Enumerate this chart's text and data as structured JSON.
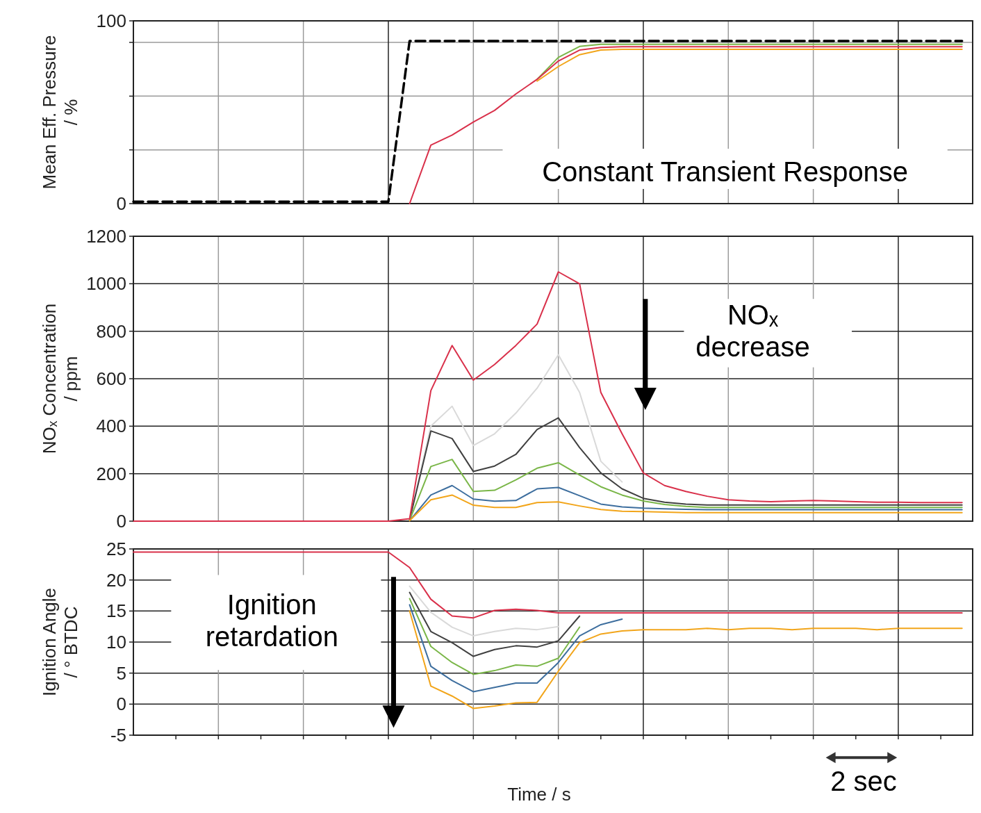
{
  "chart_data": [
    {
      "type": "line",
      "ylabel": "Mean Eff. Pressure / %",
      "ylim": [
        0,
        100
      ],
      "yticks": [
        0,
        {
          "value": 29.4,
          "label": null
        },
        {
          "value": 58.8,
          "label": null
        },
        {
          "value": 88.2,
          "label": null
        },
        100
      ],
      "grid": true,
      "annotations": [
        "Constant Transient Response"
      ],
      "categories": [
        null,
        null,
        null,
        null,
        null,
        null,
        null,
        null,
        null,
        null,
        null,
        null,
        null,
        null,
        null,
        null,
        null,
        null,
        null,
        null,
        null,
        null,
        null,
        null,
        null,
        null,
        null,
        null,
        null,
        null,
        null,
        null,
        null,
        null,
        null,
        null,
        null,
        null,
        null,
        null
      ],
      "series": [
        {
          "color": "#7ab648",
          "values": [
            null,
            null,
            null,
            null,
            null,
            null,
            null,
            null,
            null,
            null,
            null,
            null,
            null,
            null,
            null,
            null,
            null,
            null,
            null,
            68,
            80,
            86,
            87.2,
            87.2,
            87.2,
            87.2,
            87.2,
            87.2,
            87.2,
            87.2,
            87.2,
            87.2,
            87.2,
            87.2,
            87.2,
            87.2,
            87.2,
            87.2,
            87.2,
            87.2
          ]
        },
        {
          "color": "#f2a51a",
          "values": [
            null,
            null,
            null,
            null,
            null,
            null,
            null,
            null,
            null,
            null,
            null,
            null,
            null,
            null,
            null,
            null,
            null,
            null,
            null,
            67,
            75,
            81.5,
            84,
            84.4,
            84.4,
            84.4,
            84.4,
            84.4,
            84.4,
            84.4,
            84.4,
            84.4,
            84.4,
            84.4,
            84.4,
            84.4,
            84.4,
            84.4,
            84.4,
            84.4
          ]
        },
        {
          "color": "#d9304a",
          "values": [
            null,
            null,
            null,
            null,
            null,
            null,
            null,
            null,
            null,
            null,
            null,
            null,
            null,
            0,
            32,
            37.5,
            44.6,
            51,
            60,
            68,
            78,
            84,
            85.5,
            85.8,
            85.8,
            85.8,
            85.8,
            85.8,
            85.8,
            85.8,
            85.8,
            85.8,
            85.8,
            85.8,
            85.8,
            85.8,
            85.8,
            85.8,
            85.8,
            85.8
          ]
        },
        {
          "color": "#000000",
          "line_style": "dashed",
          "values": [
            1,
            1,
            1,
            1,
            1,
            1,
            1,
            1,
            1,
            1,
            1,
            1,
            1,
            89,
            89,
            89,
            89,
            89,
            89,
            89,
            89,
            89,
            89,
            89,
            89,
            89,
            89,
            89,
            89,
            89,
            89,
            89,
            89,
            89,
            89,
            89,
            89,
            89,
            89,
            89
          ]
        }
      ]
    },
    {
      "type": "line",
      "ylabel": "NOₓ Concentration / ppm",
      "ylim": [
        0,
        1200
      ],
      "yticks": [
        0,
        200,
        400,
        600,
        800,
        1000,
        1200
      ],
      "grid": true,
      "annotations": [
        "NOₓ decrease"
      ],
      "categories": [
        null,
        null,
        null,
        null,
        null,
        null,
        null,
        null,
        null,
        null,
        null,
        null,
        null,
        null,
        null,
        null,
        null,
        null,
        null,
        null,
        null,
        null,
        null,
        null,
        null,
        null,
        null,
        null,
        null,
        null,
        null,
        null,
        null,
        null,
        null,
        null,
        null,
        null,
        null,
        null
      ],
      "series": [
        {
          "color": "#d9d9d9",
          "values": [
            null,
            null,
            null,
            null,
            null,
            null,
            null,
            null,
            null,
            null,
            null,
            null,
            null,
            5,
            400,
            484,
            319,
            368,
            455,
            560,
            701,
            542,
            252,
            165,
            null,
            null,
            null,
            null,
            null,
            null,
            null,
            null,
            null,
            null,
            null,
            null,
            null,
            null,
            null,
            null
          ]
        },
        {
          "color": "#404040",
          "values": [
            null,
            null,
            null,
            null,
            null,
            null,
            null,
            null,
            null,
            null,
            null,
            null,
            null,
            5,
            380,
            348,
            209,
            232,
            281,
            386,
            435,
            310,
            203,
            136,
            96,
            80,
            72,
            68,
            68,
            68,
            68,
            68,
            68,
            68,
            68,
            68,
            68,
            68,
            68,
            68
          ]
        },
        {
          "color": "#7ab648",
          "values": [
            null,
            null,
            null,
            null,
            null,
            null,
            null,
            null,
            null,
            null,
            null,
            null,
            null,
            3,
            230,
            260,
            125,
            130,
            174,
            223,
            246,
            194,
            145,
            110,
            85,
            70,
            62,
            58,
            58,
            58,
            58,
            58,
            58,
            58,
            58,
            58,
            58,
            58,
            58,
            58
          ]
        },
        {
          "color": "#3d6e9e",
          "values": [
            null,
            null,
            null,
            null,
            null,
            null,
            null,
            null,
            null,
            null,
            null,
            null,
            null,
            2,
            110,
            150,
            93,
            84,
            87,
            136,
            142,
            107,
            72,
            60,
            55,
            52,
            50,
            48,
            48,
            48,
            48,
            48,
            48,
            48,
            48,
            48,
            48,
            48,
            48,
            48
          ]
        },
        {
          "color": "#f2a51a",
          "values": [
            null,
            null,
            null,
            null,
            null,
            null,
            null,
            null,
            null,
            null,
            null,
            null,
            null,
            2,
            90,
            110,
            67,
            58,
            58,
            78,
            81,
            64,
            49,
            42,
            40,
            38,
            36,
            36,
            36,
            36,
            36,
            36,
            36,
            36,
            36,
            36,
            36,
            36,
            36,
            36
          ]
        },
        {
          "color": "#d9304a",
          "values": [
            0,
            0,
            0,
            0,
            0,
            0,
            0,
            0,
            0,
            0,
            0,
            0,
            0,
            10,
            550,
            740,
            594,
            660,
            740,
            830,
            1050,
            1000,
            542,
            368,
            203,
            150,
            125,
            105,
            90,
            85,
            82,
            85,
            87,
            85,
            82,
            80,
            80,
            78,
            78,
            78
          ]
        }
      ]
    },
    {
      "type": "line",
      "ylabel": "Ignition Angle / ° BTDC",
      "xlabel": "Time / s",
      "ylim": [
        -5,
        25
      ],
      "yticks": [
        -5,
        0,
        5,
        10,
        15,
        20,
        25
      ],
      "grid": true,
      "annotations": [
        "Ignition retardation",
        "2 sec"
      ],
      "categories": [
        null,
        null,
        null,
        null,
        null,
        null,
        null,
        null,
        null,
        null,
        null,
        null,
        null,
        null,
        null,
        null,
        null,
        null,
        null,
        null,
        null,
        null,
        null,
        null,
        null,
        null,
        null,
        null,
        null,
        null,
        null,
        null,
        null,
        null,
        null,
        null,
        null,
        null,
        null,
        null
      ],
      "series": [
        {
          "color": "#d9d9d9",
          "values": [
            null,
            null,
            null,
            null,
            null,
            null,
            null,
            null,
            null,
            null,
            null,
            null,
            null,
            19,
            14.8,
            12.4,
            11.0,
            11.7,
            12.2,
            12.0,
            12.5,
            null,
            null,
            null,
            null,
            null,
            null,
            null,
            null,
            null,
            null,
            null,
            null,
            null,
            null,
            null,
            null,
            null,
            null,
            null
          ]
        },
        {
          "color": "#404040",
          "values": [
            null,
            null,
            null,
            null,
            null,
            null,
            null,
            null,
            null,
            null,
            null,
            null,
            null,
            18,
            11.7,
            9.9,
            7.7,
            8.8,
            9.4,
            9.2,
            10.2,
            14.2,
            null,
            null,
            null,
            null,
            null,
            null,
            null,
            null,
            null,
            null,
            null,
            null,
            null,
            null,
            null,
            null,
            null,
            null
          ]
        },
        {
          "color": "#7ab648",
          "values": [
            null,
            null,
            null,
            null,
            null,
            null,
            null,
            null,
            null,
            null,
            null,
            null,
            null,
            17,
            9.3,
            6.7,
            4.8,
            5.4,
            6.3,
            6.1,
            7.4,
            12.4,
            null,
            null,
            null,
            null,
            null,
            null,
            null,
            null,
            null,
            null,
            null,
            null,
            null,
            null,
            null,
            null,
            null,
            null
          ]
        },
        {
          "color": "#3d6e9e",
          "values": [
            null,
            null,
            null,
            null,
            null,
            null,
            null,
            null,
            null,
            null,
            null,
            null,
            null,
            16,
            6.1,
            3.8,
            2.0,
            2.7,
            3.4,
            3.4,
            6.7,
            11.0,
            12.8,
            13.7,
            null,
            null,
            null,
            null,
            null,
            null,
            null,
            null,
            null,
            null,
            null,
            null,
            null,
            null,
            null,
            null
          ]
        },
        {
          "color": "#f2a51a",
          "values": [
            null,
            null,
            null,
            null,
            null,
            null,
            null,
            null,
            null,
            null,
            null,
            null,
            null,
            15,
            2.9,
            1.3,
            -0.7,
            -0.3,
            0.2,
            0.3,
            5.3,
            9.9,
            11.3,
            11.8,
            12.0,
            12.0,
            12.0,
            12.2,
            12.0,
            12.2,
            12.2,
            12.0,
            12.2,
            12.2,
            12.2,
            12.0,
            12.2,
            12.2,
            12.2,
            12.2
          ]
        },
        {
          "color": "#d9304a",
          "values": [
            24.5,
            24.5,
            24.5,
            24.5,
            24.5,
            24.5,
            24.5,
            24.5,
            24.5,
            24.5,
            24.5,
            24.5,
            24.5,
            22,
            16.9,
            14.2,
            13.9,
            15.1,
            15.3,
            15.1,
            14.7,
            14.7,
            14.7,
            14.7,
            14.7,
            14.7,
            14.7,
            14.7,
            14.7,
            14.7,
            14.7,
            14.7,
            14.7,
            14.7,
            14.7,
            14.7,
            14.7,
            14.7,
            14.7,
            14.7
          ]
        }
      ]
    }
  ]
}
